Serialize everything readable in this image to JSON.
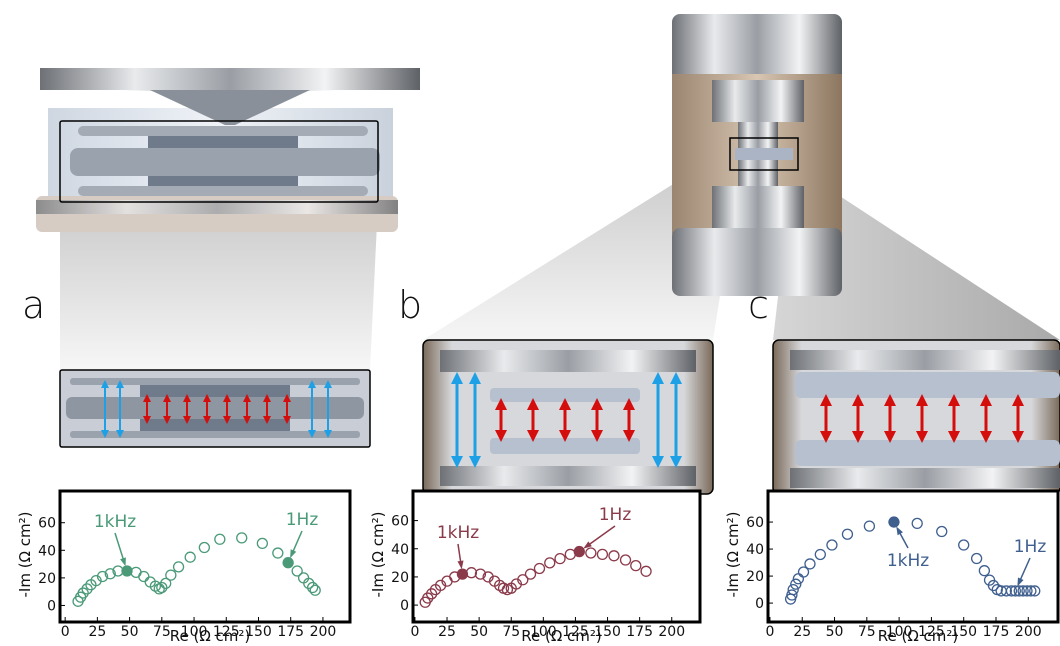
{
  "chart_data": [
    {
      "type": "scatter",
      "label": "a",
      "x_label": "Re (Ω cm²)",
      "y_label": "-Im (Ω cm²)",
      "color": "#4a9a78",
      "x": [
        10,
        12,
        14,
        17,
        20,
        24,
        29,
        35,
        41,
        48,
        55,
        61,
        66,
        70,
        73,
        75,
        78,
        82,
        88,
        97,
        108,
        120,
        137,
        153,
        165,
        173,
        180,
        185,
        189,
        192,
        194
      ],
      "values": [
        3,
        6,
        9,
        12,
        15,
        18,
        21,
        23,
        25,
        25,
        24,
        21,
        17,
        14,
        12,
        13,
        16,
        22,
        28,
        35,
        42,
        48,
        49,
        45,
        38,
        31,
        25,
        20,
        16,
        13,
        11
      ],
      "xlim": [
        -4,
        221
      ],
      "ylim": [
        -12,
        83
      ],
      "xticks": [
        0,
        25,
        50,
        75,
        100,
        125,
        150,
        175,
        200
      ],
      "yticks": [
        0,
        20,
        40,
        60
      ],
      "annotations": [
        {
          "text": "1kHz",
          "x": 48,
          "y": 25,
          "filled": true
        },
        {
          "text": "1Hz",
          "x": 173,
          "y": 31,
          "filled": true
        }
      ]
    },
    {
      "type": "scatter",
      "label": "b",
      "x_label": "Re (Ω cm²)",
      "y_label": "-Im (Ω cm²)",
      "color": "#8b3a4a",
      "x": [
        8,
        10,
        13,
        16,
        20,
        25,
        31,
        37,
        44,
        51,
        57,
        62,
        66,
        69,
        72,
        75,
        79,
        84,
        90,
        97,
        105,
        113,
        121,
        128,
        137,
        146,
        155,
        164,
        172,
        180
      ],
      "values": [
        2,
        5,
        8,
        11,
        14,
        17,
        20,
        22,
        23,
        22,
        20,
        17,
        14,
        12,
        11,
        12,
        15,
        18,
        22,
        26,
        30,
        33,
        36,
        38,
        37,
        36,
        35,
        32,
        28,
        24
      ],
      "xlim": [
        -1.5,
        222
      ],
      "ylim": [
        -12,
        81
      ],
      "xticks": [
        0,
        25,
        50,
        75,
        100,
        125,
        150,
        175,
        200
      ],
      "yticks": [
        0,
        20,
        40,
        60
      ],
      "annotations": [
        {
          "text": "1kHz",
          "x": 37,
          "y": 22,
          "filled": true
        },
        {
          "text": "1Hz",
          "x": 128,
          "y": 38,
          "filled": true
        }
      ]
    },
    {
      "type": "scatter",
      "label": "c",
      "x_label": "Re (Ω cm²)",
      "y_label": "-Im (Ω cm²)",
      "color": "#3f5f8f",
      "x": [
        16,
        17,
        18,
        20,
        22,
        26,
        31,
        39,
        48,
        60,
        77,
        96,
        114,
        133,
        150,
        160,
        166,
        170,
        173,
        176,
        179,
        183,
        187,
        190,
        193,
        196,
        199,
        202,
        205
      ],
      "values": [
        3,
        6,
        10,
        14,
        18,
        23,
        29,
        36,
        43,
        51,
        57,
        60,
        59,
        53,
        43,
        33,
        24,
        17,
        13,
        10,
        9,
        9,
        9,
        9,
        9,
        9,
        9,
        9,
        9
      ],
      "xlim": [
        -1.5,
        223
      ],
      "ylim": [
        -14,
        83
      ],
      "xticks": [
        0,
        25,
        50,
        75,
        100,
        125,
        150,
        175,
        200
      ],
      "yticks": [
        0,
        20,
        40,
        60
      ],
      "annotations": [
        {
          "text": "1kHz",
          "x": 96,
          "y": 60,
          "filled": true
        },
        {
          "text": "1Hz",
          "x": 190,
          "y": 9,
          "filled": false
        }
      ]
    }
  ]
}
